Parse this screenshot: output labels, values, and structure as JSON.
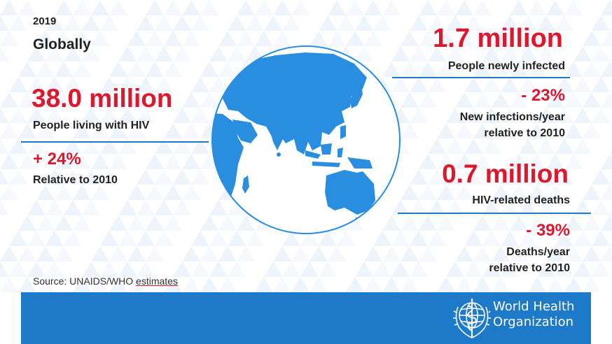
{
  "header": {
    "year": "2019",
    "scope": "Globally"
  },
  "left_panel": {
    "living_value": "38.0 million",
    "living_label": "People living with HIV",
    "living_change": "+ 24%",
    "living_change_label": "Relative to 2010"
  },
  "right_panel": {
    "new_infections_value": "1.7 million",
    "new_infections_label": "People newly infected",
    "new_infections_change": "- 23%",
    "new_infections_change_label_line1": "New infections/year",
    "new_infections_change_label_line2": "relative to 2010",
    "deaths_value": "0.7 million",
    "deaths_label": "HIV-related deaths",
    "deaths_change": "- 39%",
    "deaths_change_label_line1": "Deaths/year",
    "deaths_change_label_line2": "relative to 2010"
  },
  "source": {
    "prefix": "Source: UNAIDS/WHO ",
    "underlined": "estimates"
  },
  "footer": {
    "org_line1": "World Health",
    "org_line2": "Organization"
  },
  "icons": {
    "globe": "globe-asia-pacific-icon",
    "emblem": "who-emblem-icon"
  },
  "colors": {
    "accent_red": "#e0172c",
    "who_blue": "#1d7ac8",
    "globe_blue": "#2a8ee0",
    "text_dark": "#222222"
  }
}
